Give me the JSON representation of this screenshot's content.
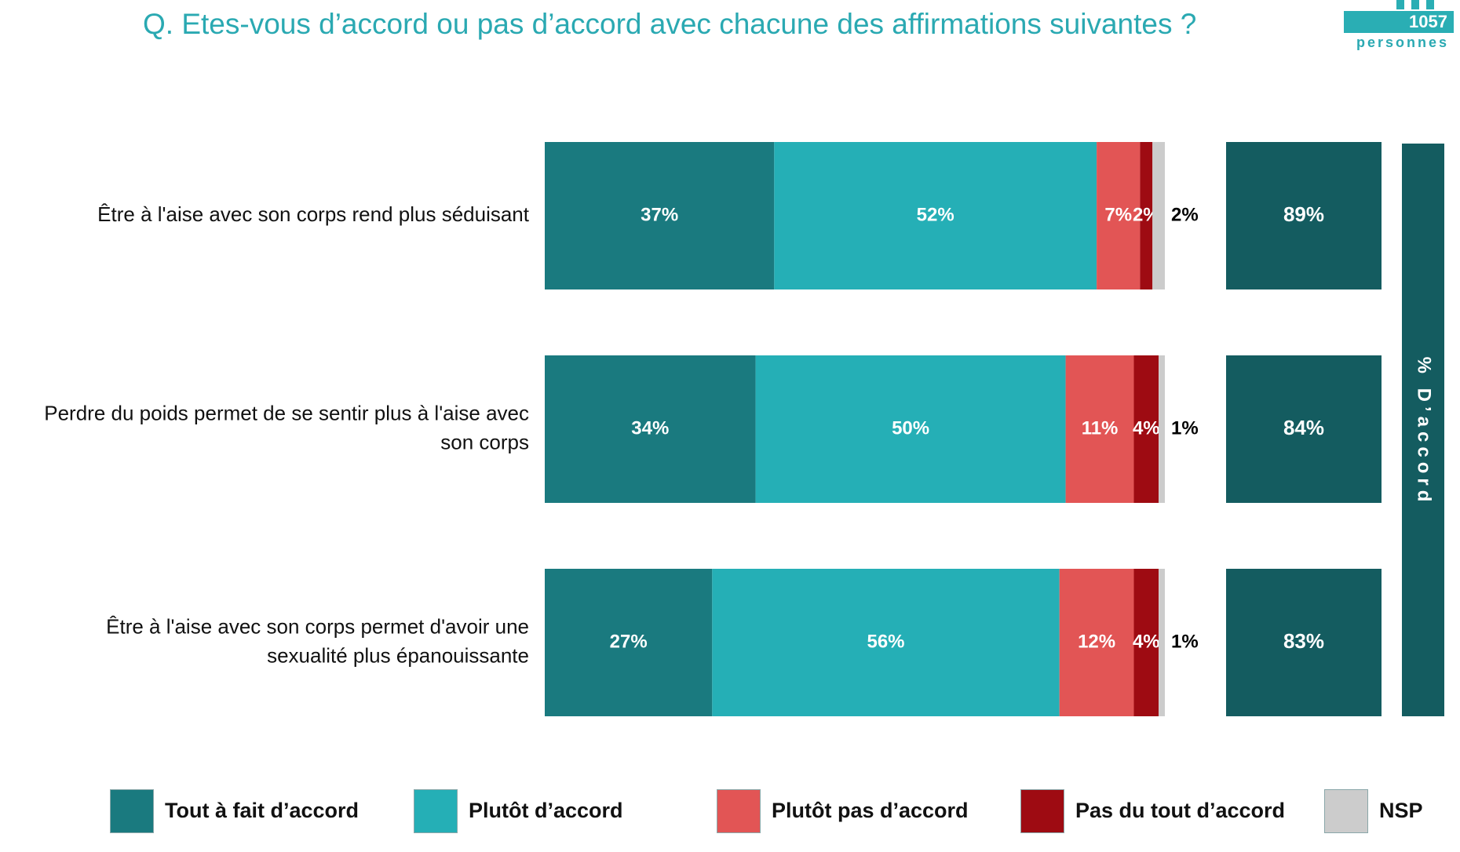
{
  "title": "Q. Etes-vous d’accord ou pas d’accord avec chacune des affirmations suivantes ?",
  "sample": {
    "count": "1057",
    "label": "personnes",
    "icon": "people-icon"
  },
  "colors": {
    "tout_a_fait": "#1a7a7f",
    "plutot": "#25afb6",
    "plutot_pas": "#e25555",
    "pas_du_tout": "#9e0b12",
    "nsp": "#cccccc",
    "total": "#145c60"
  },
  "chart_data": {
    "type": "bar",
    "orientation": "horizontal",
    "stacked": true,
    "categories": [
      "Être à l'aise avec son corps rend plus séduisant",
      "Perdre du poids permet de se sentir plus à l'aise avec son corps",
      "Être à l'aise avec son corps permet d'avoir une sexualité plus épanouissante"
    ],
    "category_lines": [
      [
        "Être à l'aise avec son corps rend plus séduisant"
      ],
      [
        "Perdre du poids permet de se sentir plus à l'aise avec",
        "son corps"
      ],
      [
        "Être à l'aise avec son corps permet d'avoir une",
        "sexualité plus épanouissante"
      ]
    ],
    "series": [
      {
        "name": "Tout à fait d’accord",
        "values": [
          37,
          34,
          27
        ],
        "labels": [
          "37%",
          "34%",
          "27%"
        ]
      },
      {
        "name": "Plutôt d’accord",
        "values": [
          52,
          50,
          56
        ],
        "labels": [
          "52%",
          "50%",
          "56%"
        ]
      },
      {
        "name": "Plutôt pas d’accord",
        "values": [
          7,
          11,
          12
        ],
        "labels": [
          "7%",
          "11%",
          "12%"
        ]
      },
      {
        "name": "Pas du tout d’accord",
        "values": [
          2,
          4,
          4
        ],
        "labels": [
          "2%",
          "4%",
          "4%"
        ]
      },
      {
        "name": "NSP",
        "values": [
          2,
          1,
          1
        ],
        "labels": [
          "2%",
          "1%",
          "1%"
        ]
      }
    ],
    "totals": {
      "name": "% D’accord",
      "values": [
        89,
        84,
        83
      ],
      "labels": [
        "89%",
        "84%",
        "83%"
      ]
    },
    "xlim": [
      0,
      100
    ],
    "legend_position": "bottom",
    "grid": false
  }
}
